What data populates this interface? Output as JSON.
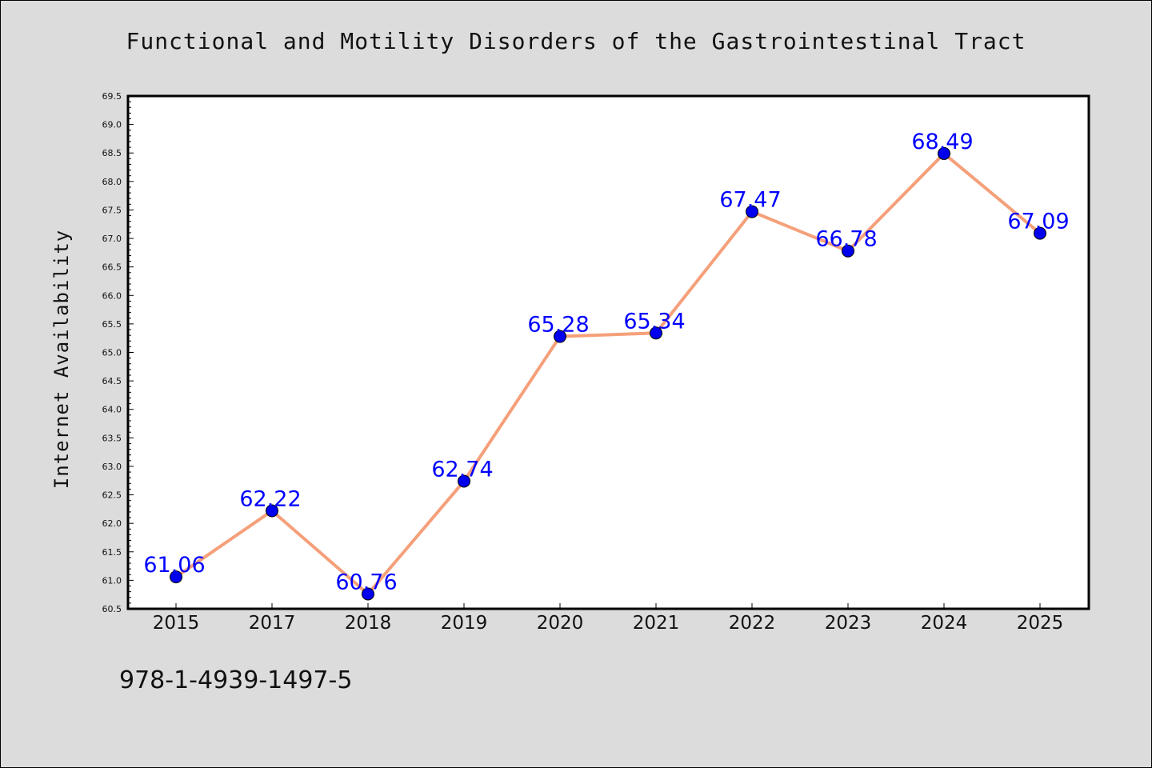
{
  "chart_data": {
    "type": "line",
    "title": "Functional and Motility Disorders of the Gastrointestinal Tract",
    "xlabel": "",
    "ylabel": "Internet Availability",
    "categories": [
      "2015",
      "2017",
      "2018",
      "2019",
      "2020",
      "2021",
      "2022",
      "2023",
      "2024",
      "2025"
    ],
    "series": [
      {
        "values": [
          61.06,
          62.22,
          60.76,
          62.74,
          65.28,
          65.34,
          67.47,
          66.78,
          68.49,
          67.09
        ],
        "data_labels": [
          "61.06",
          "62.22",
          "60.76",
          "62.74",
          "65.28",
          "65.34",
          "67.47",
          "66.78",
          "68.49",
          "67.09"
        ]
      }
    ],
    "ylim": [
      60.5,
      69.5
    ],
    "yticks": [
      "60.5",
      "61.0",
      "61.5",
      "62.0",
      "62.5",
      "63.0",
      "63.5",
      "64.0",
      "64.5",
      "65.0",
      "65.5",
      "66.0",
      "66.5",
      "67.0",
      "67.5",
      "68.0",
      "68.5",
      "69.0",
      "69.5"
    ],
    "grid": false,
    "legend": "none",
    "colors": {
      "line": "#f5a07a",
      "marker": "#0000ee",
      "data_label": "#0000ff",
      "plot_bg": "#ffffff",
      "page_bg": "#dcdcdc"
    }
  },
  "footer": {
    "isbn": "978-1-4939-1497-5"
  }
}
